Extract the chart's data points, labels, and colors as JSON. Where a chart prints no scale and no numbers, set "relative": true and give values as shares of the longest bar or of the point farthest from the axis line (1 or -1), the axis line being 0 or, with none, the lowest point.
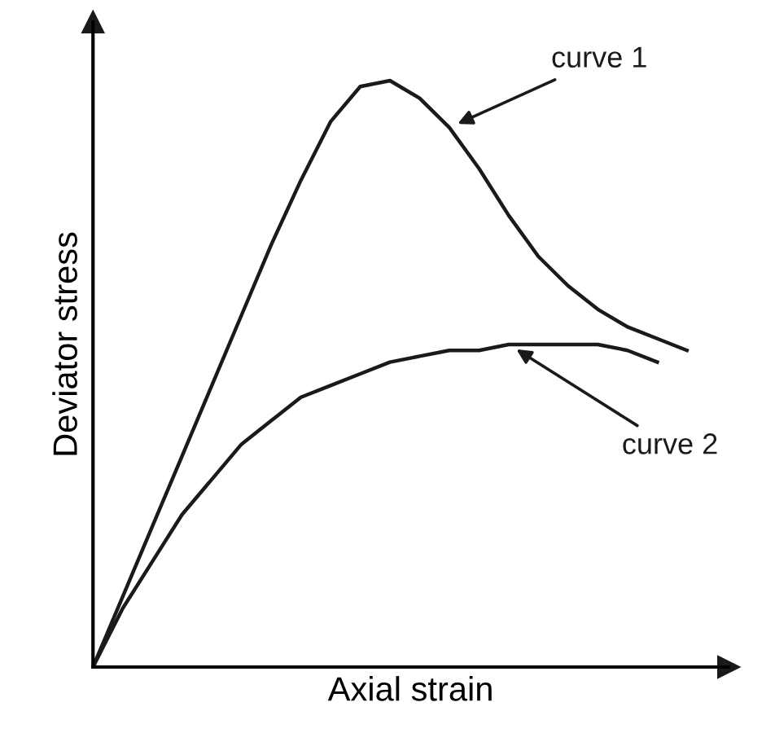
{
  "chart_data": {
    "type": "line",
    "relative": true,
    "xlabel": "Axial strain",
    "ylabel": "Deviator stress",
    "categories": [
      null,
      null,
      null,
      null,
      null,
      null,
      null,
      null,
      null,
      null,
      null,
      null,
      null,
      null,
      null,
      null,
      null,
      null,
      null,
      null,
      null
    ],
    "series": [
      {
        "name": "curve 1",
        "color": "#1a1a1a",
        "values": [
          0,
          0.12,
          0.24,
          0.36,
          0.48,
          0.6,
          0.72,
          0.83,
          0.93,
          0.99,
          1.0,
          0.97,
          0.92,
          0.85,
          0.77,
          0.7,
          0.65,
          0.61,
          0.58,
          0.56,
          0.54
        ]
      },
      {
        "name": "curve 2",
        "color": "#1a1a1a",
        "values": [
          0,
          0.1,
          0.18,
          0.26,
          0.32,
          0.38,
          0.42,
          0.46,
          0.48,
          0.5,
          0.52,
          0.53,
          0.54,
          0.54,
          0.55,
          0.55,
          0.55,
          0.55,
          0.54,
          0.52,
          null
        ]
      }
    ],
    "legend": false,
    "marker": "none",
    "line_style": "solid"
  }
}
